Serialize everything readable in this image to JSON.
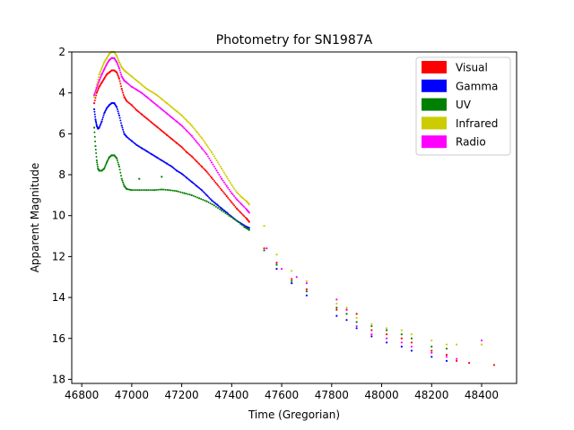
{
  "chart_data": {
    "type": "scatter",
    "title": "Photometry for SN1987A",
    "xlabel": "Time (Gregorian)",
    "ylabel": "Apparent Magnitude",
    "xlim": [
      46760,
      48540
    ],
    "ylim": [
      18.2,
      2.0
    ],
    "y_inverted": true,
    "xticks": [
      46800,
      47000,
      47200,
      47400,
      47600,
      47800,
      48000,
      48200,
      48400
    ],
    "yticks": [
      2,
      4,
      6,
      8,
      10,
      12,
      14,
      16,
      18
    ],
    "legend_position": "top-right",
    "grid": false,
    "series": [
      {
        "name": "Visual",
        "color": "#ff0000",
        "points": [
          [
            46850,
            4.5
          ],
          [
            46860,
            4.0
          ],
          [
            46870,
            3.7
          ],
          [
            46880,
            3.5
          ],
          [
            46890,
            3.3
          ],
          [
            46900,
            3.1
          ],
          [
            46910,
            3.0
          ],
          [
            46920,
            2.9
          ],
          [
            46930,
            2.9
          ],
          [
            46940,
            3.0
          ],
          [
            46950,
            3.3
          ],
          [
            46960,
            3.8
          ],
          [
            46970,
            4.2
          ],
          [
            46980,
            4.4
          ],
          [
            47000,
            4.6
          ],
          [
            47020,
            4.85
          ],
          [
            47040,
            5.05
          ],
          [
            47060,
            5.25
          ],
          [
            47080,
            5.45
          ],
          [
            47100,
            5.65
          ],
          [
            47120,
            5.85
          ],
          [
            47140,
            6.05
          ],
          [
            47160,
            6.25
          ],
          [
            47180,
            6.45
          ],
          [
            47200,
            6.65
          ],
          [
            47220,
            6.9
          ],
          [
            47240,
            7.1
          ],
          [
            47260,
            7.35
          ],
          [
            47280,
            7.6
          ],
          [
            47300,
            7.85
          ],
          [
            47320,
            8.15
          ],
          [
            47340,
            8.45
          ],
          [
            47360,
            8.75
          ],
          [
            47380,
            9.05
          ],
          [
            47400,
            9.35
          ],
          [
            47420,
            9.65
          ],
          [
            47440,
            9.9
          ],
          [
            47460,
            10.15
          ],
          [
            47470,
            10.3
          ],
          [
            47530,
            11.6
          ],
          [
            47580,
            12.3
          ],
          [
            47640,
            13.1
          ],
          [
            47700,
            13.6
          ],
          [
            47820,
            14.6
          ],
          [
            47860,
            14.6
          ],
          [
            47900,
            14.8
          ],
          [
            47960,
            15.6
          ],
          [
            48020,
            15.8
          ],
          [
            48080,
            16.0
          ],
          [
            48120,
            16.2
          ],
          [
            48200,
            16.6
          ],
          [
            48260,
            16.8
          ],
          [
            48300,
            17.1
          ],
          [
            48350,
            17.2
          ],
          [
            48450,
            17.3
          ]
        ]
      },
      {
        "name": "Gamma",
        "color": "#0000ff",
        "points": [
          [
            46850,
            4.8
          ],
          [
            46855,
            5.3
          ],
          [
            46860,
            5.6
          ],
          [
            46865,
            5.75
          ],
          [
            46870,
            5.7
          ],
          [
            46880,
            5.4
          ],
          [
            46890,
            5.0
          ],
          [
            46900,
            4.75
          ],
          [
            46910,
            4.6
          ],
          [
            46920,
            4.5
          ],
          [
            46930,
            4.5
          ],
          [
            46940,
            4.7
          ],
          [
            46950,
            5.1
          ],
          [
            46960,
            5.6
          ],
          [
            46970,
            6.0
          ],
          [
            46980,
            6.15
          ],
          [
            47000,
            6.35
          ],
          [
            47020,
            6.55
          ],
          [
            47040,
            6.7
          ],
          [
            47060,
            6.85
          ],
          [
            47080,
            7.0
          ],
          [
            47100,
            7.15
          ],
          [
            47120,
            7.3
          ],
          [
            47140,
            7.45
          ],
          [
            47160,
            7.6
          ],
          [
            47180,
            7.8
          ],
          [
            47200,
            7.95
          ],
          [
            47220,
            8.15
          ],
          [
            47240,
            8.35
          ],
          [
            47260,
            8.55
          ],
          [
            47280,
            8.75
          ],
          [
            47300,
            9.0
          ],
          [
            47320,
            9.25
          ],
          [
            47340,
            9.45
          ],
          [
            47360,
            9.65
          ],
          [
            47380,
            9.85
          ],
          [
            47400,
            10.05
          ],
          [
            47420,
            10.25
          ],
          [
            47440,
            10.4
          ],
          [
            47460,
            10.55
          ],
          [
            47470,
            10.6
          ],
          [
            47580,
            12.6
          ],
          [
            47640,
            13.3
          ],
          [
            47700,
            13.9
          ],
          [
            47820,
            14.9
          ],
          [
            47860,
            15.1
          ],
          [
            47900,
            15.5
          ],
          [
            47960,
            15.9
          ],
          [
            48020,
            16.2
          ],
          [
            48080,
            16.4
          ],
          [
            48120,
            16.6
          ],
          [
            48200,
            16.9
          ],
          [
            48260,
            17.1
          ]
        ]
      },
      {
        "name": "UV",
        "color": "#008000",
        "points": [
          [
            46850,
            5.7
          ],
          [
            46855,
            6.6
          ],
          [
            46860,
            7.3
          ],
          [
            46865,
            7.7
          ],
          [
            46870,
            7.8
          ],
          [
            46880,
            7.8
          ],
          [
            46890,
            7.7
          ],
          [
            46900,
            7.4
          ],
          [
            46910,
            7.15
          ],
          [
            46920,
            7.05
          ],
          [
            46930,
            7.05
          ],
          [
            46940,
            7.2
          ],
          [
            46950,
            7.6
          ],
          [
            46960,
            8.2
          ],
          [
            46970,
            8.55
          ],
          [
            46980,
            8.7
          ],
          [
            47000,
            8.75
          ],
          [
            47030,
            8.75
          ],
          [
            47060,
            8.75
          ],
          [
            47090,
            8.75
          ],
          [
            47120,
            8.72
          ],
          [
            47150,
            8.75
          ],
          [
            47180,
            8.8
          ],
          [
            47210,
            8.9
          ],
          [
            47240,
            9.0
          ],
          [
            47270,
            9.15
          ],
          [
            47300,
            9.3
          ],
          [
            47330,
            9.5
          ],
          [
            47360,
            9.75
          ],
          [
            47390,
            10.0
          ],
          [
            47420,
            10.25
          ],
          [
            47450,
            10.55
          ],
          [
            47470,
            10.7
          ],
          [
            47030,
            8.2
          ],
          [
            47120,
            8.1
          ],
          [
            47530,
            11.7
          ],
          [
            47580,
            12.4
          ],
          [
            47640,
            13.2
          ],
          [
            47700,
            13.7
          ],
          [
            47820,
            14.5
          ],
          [
            47860,
            14.8
          ],
          [
            47900,
            15.2
          ],
          [
            47960,
            15.4
          ],
          [
            48020,
            15.6
          ],
          [
            48080,
            15.8
          ],
          [
            48120,
            16.0
          ],
          [
            48200,
            16.4
          ],
          [
            48260,
            16.5
          ]
        ]
      },
      {
        "name": "Infrared",
        "color": "#cccc00",
        "points": [
          [
            46850,
            4.2
          ],
          [
            46860,
            3.6
          ],
          [
            46870,
            3.1
          ],
          [
            46880,
            2.8
          ],
          [
            46890,
            2.5
          ],
          [
            46900,
            2.3
          ],
          [
            46910,
            2.1
          ],
          [
            46920,
            2.0
          ],
          [
            46930,
            2.0
          ],
          [
            46940,
            2.2
          ],
          [
            46950,
            2.5
          ],
          [
            46960,
            2.75
          ],
          [
            46970,
            2.9
          ],
          [
            46980,
            3.0
          ],
          [
            47000,
            3.2
          ],
          [
            47020,
            3.4
          ],
          [
            47040,
            3.6
          ],
          [
            47060,
            3.8
          ],
          [
            47080,
            3.95
          ],
          [
            47100,
            4.1
          ],
          [
            47120,
            4.3
          ],
          [
            47140,
            4.5
          ],
          [
            47160,
            4.7
          ],
          [
            47180,
            4.9
          ],
          [
            47200,
            5.1
          ],
          [
            47220,
            5.35
          ],
          [
            47240,
            5.6
          ],
          [
            47260,
            5.9
          ],
          [
            47280,
            6.2
          ],
          [
            47300,
            6.55
          ],
          [
            47320,
            6.9
          ],
          [
            47340,
            7.3
          ],
          [
            47360,
            7.7
          ],
          [
            47380,
            8.1
          ],
          [
            47400,
            8.5
          ],
          [
            47420,
            8.85
          ],
          [
            47440,
            9.1
          ],
          [
            47460,
            9.3
          ],
          [
            47470,
            9.45
          ],
          [
            47530,
            10.5
          ],
          [
            47580,
            11.9
          ],
          [
            47640,
            12.7
          ],
          [
            47700,
            13.2
          ],
          [
            47820,
            14.3
          ],
          [
            47860,
            14.5
          ],
          [
            47900,
            15.0
          ],
          [
            47960,
            15.3
          ],
          [
            48020,
            15.5
          ],
          [
            48080,
            15.6
          ],
          [
            48120,
            15.8
          ],
          [
            48200,
            16.1
          ],
          [
            48260,
            16.3
          ],
          [
            48300,
            16.3
          ],
          [
            48400,
            16.3
          ]
        ]
      },
      {
        "name": "Radio",
        "color": "#ff00ff",
        "points": [
          [
            46850,
            4.1
          ],
          [
            46860,
            3.75
          ],
          [
            46870,
            3.4
          ],
          [
            46880,
            3.1
          ],
          [
            46890,
            2.85
          ],
          [
            46900,
            2.6
          ],
          [
            46910,
            2.4
          ],
          [
            46920,
            2.3
          ],
          [
            46930,
            2.3
          ],
          [
            46940,
            2.5
          ],
          [
            46950,
            2.8
          ],
          [
            46960,
            3.2
          ],
          [
            46970,
            3.4
          ],
          [
            46980,
            3.5
          ],
          [
            47000,
            3.7
          ],
          [
            47020,
            3.85
          ],
          [
            47040,
            4.0
          ],
          [
            47060,
            4.2
          ],
          [
            47080,
            4.4
          ],
          [
            47100,
            4.6
          ],
          [
            47120,
            4.8
          ],
          [
            47140,
            5.0
          ],
          [
            47160,
            5.2
          ],
          [
            47180,
            5.4
          ],
          [
            47200,
            5.6
          ],
          [
            47220,
            5.85
          ],
          [
            47240,
            6.1
          ],
          [
            47260,
            6.4
          ],
          [
            47280,
            6.7
          ],
          [
            47300,
            7.0
          ],
          [
            47320,
            7.4
          ],
          [
            47340,
            7.8
          ],
          [
            47360,
            8.2
          ],
          [
            47380,
            8.55
          ],
          [
            47400,
            8.9
          ],
          [
            47420,
            9.2
          ],
          [
            47440,
            9.45
          ],
          [
            47460,
            9.7
          ],
          [
            47470,
            9.85
          ],
          [
            47540,
            11.6
          ],
          [
            47600,
            12.6
          ],
          [
            47660,
            13.0
          ],
          [
            47700,
            13.3
          ],
          [
            47820,
            14.1
          ],
          [
            47860,
            14.6
          ],
          [
            47900,
            15.4
          ],
          [
            47960,
            15.8
          ],
          [
            48020,
            16.0
          ],
          [
            48080,
            16.2
          ],
          [
            48120,
            16.4
          ],
          [
            48200,
            16.7
          ],
          [
            48260,
            16.9
          ],
          [
            48300,
            17.0
          ],
          [
            48400,
            16.1
          ]
        ]
      }
    ]
  }
}
